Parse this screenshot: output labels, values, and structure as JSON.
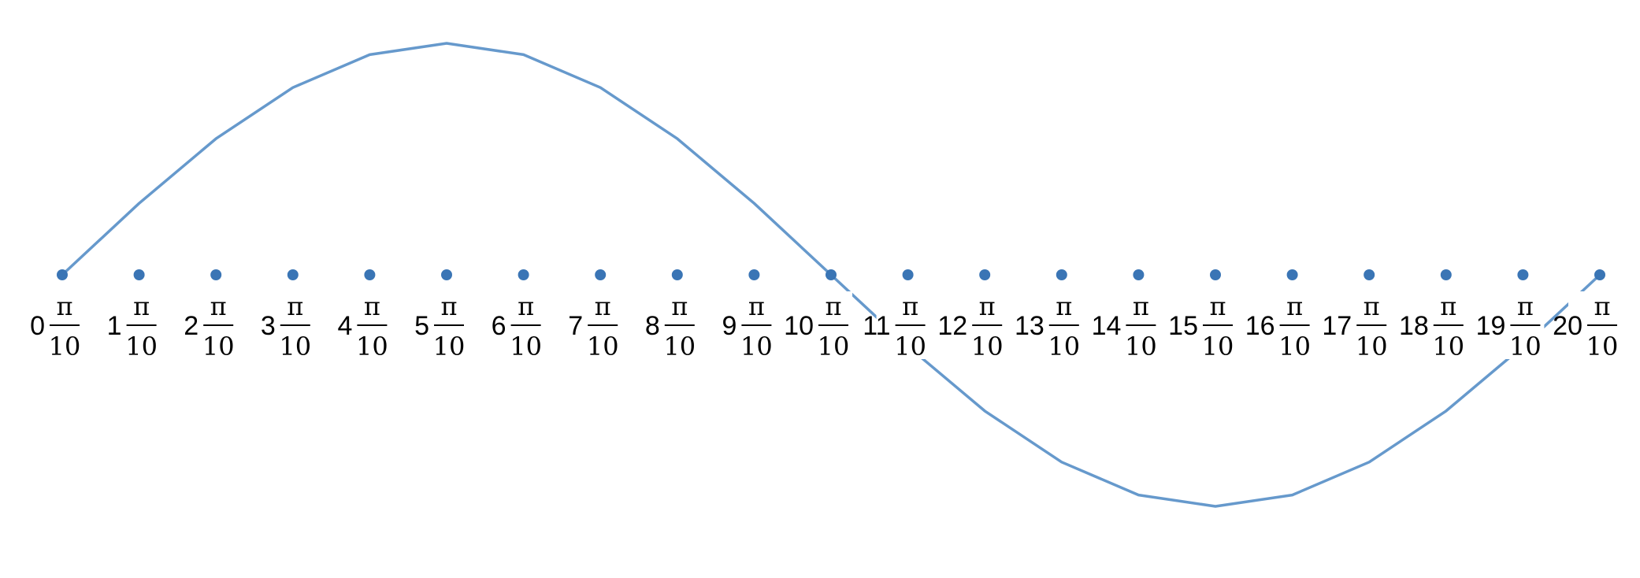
{
  "diagram": {
    "curve_color": "#6699CC",
    "point_color": "#3A75B5",
    "label_bg": "#FFFFFF",
    "fraction": {
      "numerator": "π",
      "denominator": "10"
    },
    "points": [
      {
        "coef": "0",
        "value": 0
      },
      {
        "coef": "1",
        "value": 0.309
      },
      {
        "coef": "2",
        "value": 0.588
      },
      {
        "coef": "3",
        "value": 0.809
      },
      {
        "coef": "4",
        "value": 0.951
      },
      {
        "coef": "5",
        "value": 1
      },
      {
        "coef": "6",
        "value": 0.951
      },
      {
        "coef": "7",
        "value": 0.809
      },
      {
        "coef": "8",
        "value": 0.588
      },
      {
        "coef": "9",
        "value": 0.309
      },
      {
        "coef": "10",
        "value": 0
      },
      {
        "coef": "11",
        "value": -0.309
      },
      {
        "coef": "12",
        "value": -0.588
      },
      {
        "coef": "13",
        "value": -0.809
      },
      {
        "coef": "14",
        "value": -0.951
      },
      {
        "coef": "15",
        "value": -1
      },
      {
        "coef": "16",
        "value": -0.951
      },
      {
        "coef": "17",
        "value": -0.809
      },
      {
        "coef": "18",
        "value": -0.588
      },
      {
        "coef": "19",
        "value": -0.309
      },
      {
        "coef": "20",
        "value": 0
      }
    ]
  }
}
